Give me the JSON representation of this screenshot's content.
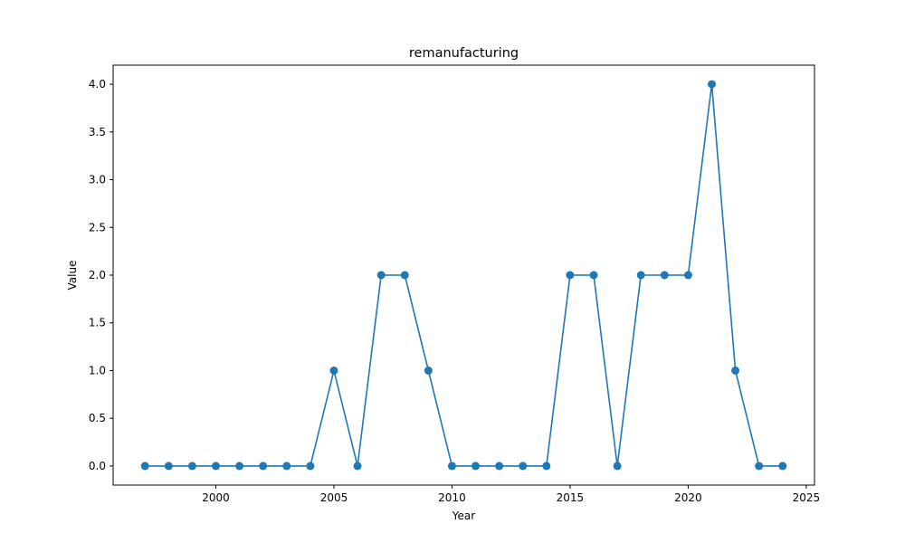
{
  "chart_data": {
    "type": "line",
    "title": "remanufacturing",
    "xlabel": "Year",
    "ylabel": "Value",
    "xlim": [
      1995.65,
      2025.35
    ],
    "ylim": [
      -0.2,
      4.2
    ],
    "x_ticks": [
      2000,
      2005,
      2010,
      2015,
      2020,
      2025
    ],
    "x_tick_labels": [
      "2000",
      "2005",
      "2010",
      "2015",
      "2020",
      "2025"
    ],
    "y_ticks": [
      0.0,
      0.5,
      1.0,
      1.5,
      2.0,
      2.5,
      3.0,
      3.5,
      4.0
    ],
    "y_tick_labels": [
      "0.0",
      "0.5",
      "1.0",
      "1.5",
      "2.0",
      "2.5",
      "3.0",
      "3.5",
      "4.0"
    ],
    "grid": false,
    "legend": "none",
    "color": "#1f77b4",
    "series": [
      {
        "x": [
          1997,
          1998,
          1999,
          2000,
          2001,
          2002,
          2003,
          2004,
          2005,
          2006,
          2007,
          2008,
          2009,
          2010,
          2011,
          2012,
          2013,
          2014,
          2015,
          2016,
          2017,
          2018,
          2019,
          2020,
          2021,
          2022,
          2023,
          2024
        ],
        "values": [
          0,
          0,
          0,
          0,
          0,
          0,
          0,
          0,
          1,
          0,
          2,
          2,
          1,
          0,
          0,
          0,
          0,
          0,
          2,
          2,
          0,
          2,
          2,
          2,
          4,
          1,
          0,
          0
        ]
      }
    ]
  }
}
